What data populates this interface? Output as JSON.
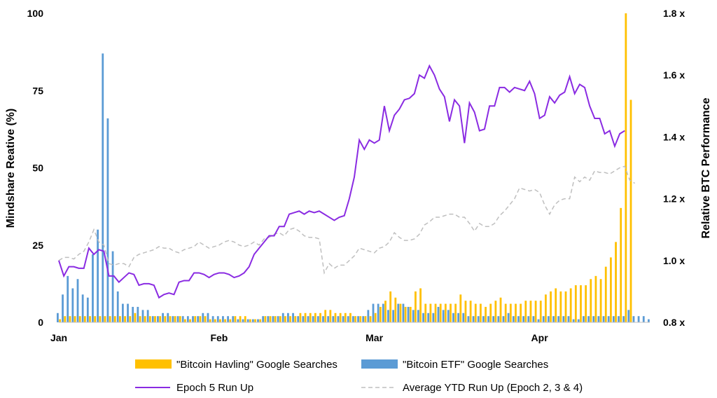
{
  "chart_data": {
    "type": "bar+line",
    "title": "",
    "ylabel_left": "Mindshare Reative (%)",
    "ylabel_right": "Relative BTC Performance",
    "ylim_left": [
      0,
      100
    ],
    "ylim_right": [
      0.8,
      1.8
    ],
    "yticks_left": [
      "0",
      "25",
      "50",
      "75",
      "100"
    ],
    "yticks_right": [
      "0.8 x",
      "1.0 x",
      "1.2 x",
      "1.4 x",
      "1.6 x",
      "1.8 x"
    ],
    "x_range": [
      0,
      118
    ],
    "xticks": [
      {
        "label": "Jan",
        "x": 0
      },
      {
        "label": "Feb",
        "x": 32
      },
      {
        "label": "Mar",
        "x": 63
      },
      {
        "label": "Apr",
        "x": 96
      }
    ],
    "legend_position": "bottom",
    "colors": {
      "havling": "#FFC000",
      "etf": "#5B9BD5",
      "epoch5": "#8A2BE2",
      "average": "#BFBFBF"
    },
    "series": [
      {
        "name": "\"Bitcoin Havling\" Google Searches",
        "type": "bar",
        "axis": "left",
        "color": "#FFC000",
        "values": [
          1,
          2,
          2,
          2,
          2,
          2,
          2,
          2,
          2,
          2,
          2,
          2,
          2,
          2,
          2,
          3,
          2,
          2,
          2,
          2,
          2,
          2,
          2,
          2,
          2,
          1,
          1,
          2,
          2,
          2,
          1,
          1,
          1,
          1,
          1,
          2,
          2,
          2,
          1,
          1,
          1,
          2,
          2,
          2,
          2,
          2,
          2,
          2,
          3,
          3,
          3,
          3,
          3,
          4,
          4,
          3,
          3,
          3,
          3,
          2,
          2,
          2,
          2,
          3,
          5,
          7,
          10,
          8,
          6,
          5,
          5,
          10,
          11,
          6,
          6,
          6,
          6,
          6,
          6,
          6,
          9,
          7,
          7,
          6,
          6,
          5,
          6,
          7,
          8,
          6,
          6,
          6,
          6,
          7,
          7,
          7,
          7,
          9,
          10,
          11,
          10,
          10,
          11,
          12,
          12,
          12,
          14,
          15,
          14,
          18,
          21,
          26,
          37,
          100,
          72
        ],
        "x_start": 0
      },
      {
        "name": "\"Bitcoin ETF\" Google Searches",
        "type": "bar",
        "axis": "left",
        "color": "#5B9BD5",
        "values": [
          3,
          9,
          15,
          11,
          14,
          9,
          8,
          22,
          30,
          87,
          66,
          23,
          10,
          6,
          6,
          5,
          5,
          4,
          4,
          2,
          2,
          3,
          3,
          2,
          2,
          2,
          2,
          2,
          2,
          3,
          3,
          2,
          2,
          2,
          2,
          2,
          1,
          1,
          1,
          1,
          1,
          2,
          2,
          2,
          2,
          3,
          3,
          3,
          2,
          2,
          2,
          2,
          2,
          2,
          2,
          2,
          2,
          2,
          2,
          2,
          2,
          2,
          4,
          6,
          6,
          6,
          4,
          4,
          6,
          6,
          5,
          4,
          4,
          3,
          3,
          3,
          5,
          4,
          4,
          3,
          3,
          3,
          2,
          2,
          2,
          2,
          2,
          2,
          2,
          2,
          3,
          2,
          2,
          2,
          2,
          2,
          1,
          2,
          2,
          2,
          2,
          2,
          2,
          1,
          1,
          2,
          2,
          2,
          2,
          2,
          2,
          2,
          2,
          2,
          4,
          2,
          2,
          2,
          1
        ],
        "x_start": 0
      },
      {
        "name": "Epoch 5 Run Up",
        "type": "line",
        "axis": "right",
        "color": "#8A2BE2",
        "values": [
          1.0,
          0.95,
          0.98,
          0.98,
          0.975,
          0.975,
          1.04,
          1.02,
          1.035,
          1.03,
          0.95,
          0.95,
          0.93,
          0.945,
          0.96,
          0.955,
          0.92,
          0.925,
          0.925,
          0.92,
          0.88,
          0.89,
          0.895,
          0.89,
          0.93,
          0.935,
          0.935,
          0.96,
          0.96,
          0.955,
          0.945,
          0.955,
          0.96,
          0.96,
          0.955,
          0.945,
          0.95,
          0.96,
          0.98,
          1.02,
          1.04,
          1.06,
          1.08,
          1.08,
          1.11,
          1.11,
          1.15,
          1.155,
          1.16,
          1.15,
          1.16,
          1.155,
          1.16,
          1.15,
          1.14,
          1.13,
          1.14,
          1.145,
          1.2,
          1.27,
          1.39,
          1.36,
          1.39,
          1.38,
          1.39,
          1.5,
          1.42,
          1.47,
          1.49,
          1.52,
          1.525,
          1.54,
          1.6,
          1.59,
          1.63,
          1.6,
          1.555,
          1.53,
          1.45,
          1.52,
          1.5,
          1.38,
          1.51,
          1.48,
          1.42,
          1.425,
          1.5,
          1.5,
          1.56,
          1.56,
          1.545,
          1.56,
          1.555,
          1.55,
          1.58,
          1.54,
          1.46,
          1.47,
          1.53,
          1.51,
          1.535,
          1.545,
          1.595,
          1.54,
          1.57,
          1.56,
          1.5,
          1.46,
          1.46,
          1.41,
          1.42,
          1.37,
          1.41,
          1.42
        ],
        "x_start": 0
      },
      {
        "name": "Average YTD Run Up (Epoch 2, 3 & 4)",
        "type": "line",
        "axis": "right",
        "dashed": true,
        "color": "#BFBFBF",
        "values": [
          1.0,
          1.01,
          1.01,
          1.005,
          1.02,
          1.03,
          1.06,
          1.1,
          1.06,
          1.05,
          0.99,
          0.985,
          0.99,
          0.99,
          0.98,
          1.01,
          1.02,
          1.025,
          1.03,
          1.035,
          1.045,
          1.04,
          1.04,
          1.03,
          1.025,
          1.035,
          1.04,
          1.045,
          1.06,
          1.05,
          1.04,
          1.045,
          1.05,
          1.06,
          1.065,
          1.06,
          1.05,
          1.045,
          1.05,
          1.06,
          1.05,
          1.07,
          1.075,
          1.085,
          1.09,
          1.08,
          1.1,
          1.105,
          1.095,
          1.08,
          1.075,
          1.075,
          1.07,
          0.96,
          0.99,
          0.975,
          0.985,
          0.985,
          1.0,
          1.015,
          1.04,
          1.035,
          1.03,
          1.025,
          1.04,
          1.045,
          1.06,
          1.09,
          1.075,
          1.065,
          1.065,
          1.07,
          1.085,
          1.115,
          1.125,
          1.14,
          1.14,
          1.145,
          1.15,
          1.15,
          1.14,
          1.14,
          1.12,
          1.095,
          1.12,
          1.11,
          1.11,
          1.12,
          1.145,
          1.16,
          1.18,
          1.2,
          1.235,
          1.23,
          1.225,
          1.23,
          1.22,
          1.18,
          1.15,
          1.18,
          1.195,
          1.2,
          1.2,
          1.27,
          1.255,
          1.27,
          1.26,
          1.29,
          1.285,
          1.285,
          1.28,
          1.29,
          1.3,
          1.305,
          1.26,
          1.25
        ],
        "x_start": 0
      }
    ]
  }
}
